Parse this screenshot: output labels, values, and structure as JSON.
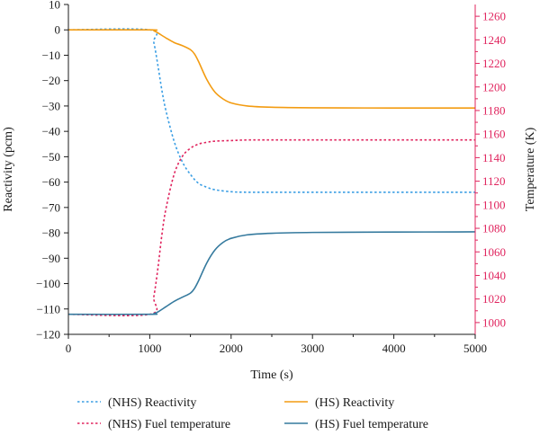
{
  "chart_data": {
    "type": "line",
    "xlabel": "Time (s)",
    "ylabel_left": "Reactivity (pcm)",
    "ylabel_right": "Temperature (K)",
    "xlim": [
      0,
      5000
    ],
    "ylim_left": [
      -120,
      10
    ],
    "ylim_right": [
      990,
      1270
    ],
    "x_ticks": [
      "0",
      "1000",
      "2000",
      "3000",
      "4000",
      "5000"
    ],
    "y_left_ticks": [
      "10",
      "0",
      "−10",
      "−20",
      "−30",
      "−40",
      "−50",
      "−60",
      "−70",
      "−80",
      "−90",
      "−100",
      "−110",
      "−120"
    ],
    "y_right_ticks": [
      "1000",
      "1020",
      "1040",
      "1060",
      "1080",
      "1100",
      "1120",
      "1140",
      "1160",
      "1180",
      "1200",
      "1220",
      "1240",
      "1260"
    ],
    "grid": false,
    "legend_position": "bottom",
    "colors": {
      "right_axis": "#e0245e",
      "nhs_reactivity": "#3a9ee4",
      "hs_reactivity": "#f39c12",
      "nhs_fuel_temp": "#e0245e",
      "hs_fuel_temp": "#357a9e"
    },
    "series": [
      {
        "name": "(NHS) Reactivity",
        "axis": "left",
        "style": "dashed",
        "color": "#3a9ee4",
        "x": [
          0,
          1000,
          1050,
          1100,
          1150,
          1200,
          1300,
          1400,
          1500,
          1600,
          1700,
          1800,
          2000,
          2200,
          2500,
          3000,
          4000,
          5000
        ],
        "y": [
          0,
          0,
          -5,
          -14,
          -24,
          -32,
          -44,
          -52,
          -57,
          -60.5,
          -62,
          -63,
          -63.8,
          -64,
          -64,
          -64,
          -64,
          -64
        ]
      },
      {
        "name": "(HS) Reactivity",
        "axis": "left",
        "style": "solid",
        "color": "#f39c12",
        "x": [
          0,
          1000,
          1050,
          1100,
          1200,
          1300,
          1400,
          1500,
          1550,
          1600,
          1700,
          1800,
          1900,
          2000,
          2200,
          2500,
          3000,
          4000,
          5000
        ],
        "y": [
          0,
          0,
          -0.3,
          -1.2,
          -3.2,
          -5,
          -6.2,
          -7.8,
          -9.5,
          -12.5,
          -19.5,
          -24.5,
          -27.2,
          -28.8,
          -30,
          -30.5,
          -30.7,
          -30.8,
          -30.8
        ]
      },
      {
        "name": "(NHS) Fuel temperature",
        "axis": "right",
        "style": "dashed",
        "color": "#e0245e",
        "x": [
          0,
          1000,
          1050,
          1100,
          1150,
          1200,
          1300,
          1400,
          1500,
          1600,
          1700,
          1800,
          2000,
          2200,
          2500,
          3000,
          4000,
          5000
        ],
        "y": [
          1007,
          1007,
          1022,
          1046,
          1075,
          1097,
          1126,
          1141,
          1148,
          1151.5,
          1153,
          1154,
          1154.5,
          1155,
          1155,
          1155,
          1155,
          1155
        ]
      },
      {
        "name": "(HS) Fuel temperature",
        "axis": "right",
        "style": "solid",
        "color": "#357a9e",
        "x": [
          0,
          1000,
          1050,
          1100,
          1200,
          1300,
          1400,
          1500,
          1550,
          1600,
          1700,
          1800,
          1900,
          2000,
          2200,
          2500,
          3000,
          4000,
          5000
        ],
        "y": [
          1007,
          1007,
          1007.5,
          1009,
          1013.5,
          1018,
          1021.5,
          1025,
          1029,
          1035.5,
          1050.5,
          1061.5,
          1068,
          1071.5,
          1074.5,
          1075.8,
          1076.5,
          1076.8,
          1077
        ]
      }
    ]
  }
}
